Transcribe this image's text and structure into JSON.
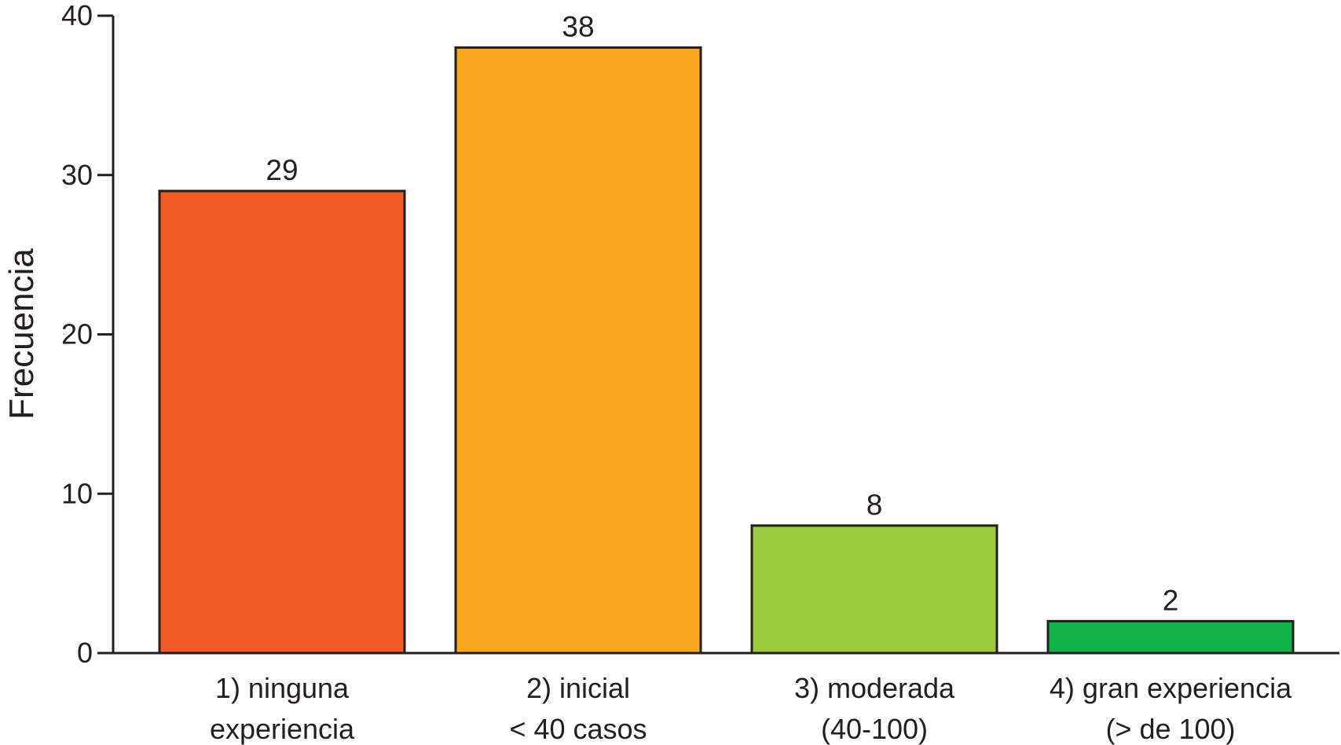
{
  "chart_data": {
    "type": "bar",
    "title": "",
    "xlabel": "",
    "ylabel": "Frecuencia",
    "ylim": [
      0,
      40
    ],
    "yticks": [
      0,
      10,
      20,
      30,
      40
    ],
    "grid": false,
    "categories": [
      [
        "1) ninguna",
        "experiencia"
      ],
      [
        "2) inicial",
        "< 40 casos"
      ],
      [
        "3) moderada",
        "(40-100)"
      ],
      [
        "4) gran experiencia",
        "(> de 100)"
      ]
    ],
    "values": [
      29,
      38,
      8,
      2
    ],
    "data_labels": [
      "29",
      "38",
      "8",
      "2"
    ],
    "colors": [
      "#f15a24",
      "#f9a71c",
      "#9acb3c",
      "#12b24b"
    ]
  }
}
